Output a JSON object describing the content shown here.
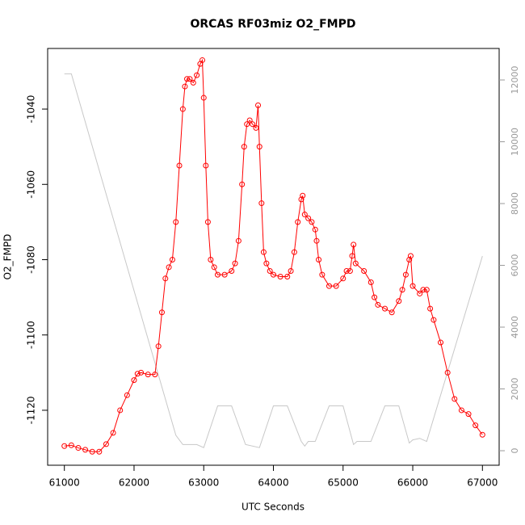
{
  "chart_data": {
    "type": "line",
    "title": "ORCAS RF03miz O2_FMPD",
    "xlabel": "UTC Seconds",
    "ylabel": "O2_FMPD",
    "xlim": [
      60760,
      67240
    ],
    "xticks": [
      61000,
      62000,
      63000,
      64000,
      65000,
      66000,
      67000
    ],
    "ylim": [
      -1134.6,
      -1023.9
    ],
    "yticks": [
      -1120,
      -1100,
      -1080,
      -1060,
      -1040
    ],
    "y2lim": [
      -470,
      13020
    ],
    "y2ticks": [
      0,
      2000,
      4000,
      6000,
      8000,
      10000,
      12000
    ],
    "series": [
      {
        "color": "#ff0000",
        "marker": "circle",
        "x": [
          61000,
          61100,
          61200,
          61300,
          61400,
          61500,
          61600,
          61700,
          61800,
          61900,
          62000,
          62050,
          62100,
          62200,
          62300,
          62350,
          62400,
          62450,
          62500,
          62550,
          62600,
          62650,
          62700,
          62730,
          62760,
          62800,
          62850,
          62900,
          62950,
          62980,
          63000,
          63030,
          63060,
          63100,
          63150,
          63200,
          63300,
          63400,
          63450,
          63500,
          63550,
          63580,
          63620,
          63660,
          63700,
          63750,
          63780,
          63800,
          63830,
          63860,
          63900,
          63950,
          64000,
          64100,
          64200,
          64250,
          64300,
          64350,
          64400,
          64420,
          64450,
          64500,
          64550,
          64600,
          64620,
          64650,
          64700,
          64800,
          64900,
          65000,
          65050,
          65100,
          65130,
          65150,
          65180,
          65300,
          65400,
          65450,
          65500,
          65600,
          65700,
          65800,
          65850,
          65900,
          65950,
          65970,
          66000,
          66100,
          66150,
          66200,
          66250,
          66300,
          66400,
          66500,
          66600,
          66700,
          66800,
          66900,
          67000
        ],
        "values": [
          -1129.5,
          -1129.3,
          -1130,
          -1130.5,
          -1131,
          -1131,
          -1129,
          -1126,
          -1120,
          -1116,
          -1112,
          -1110.3,
          -1110,
          -1110.5,
          -1110.5,
          -1103,
          -1094,
          -1085,
          -1082,
          -1080,
          -1070,
          -1055,
          -1040,
          -1034,
          -1032,
          -1032,
          -1033,
          -1031,
          -1028,
          -1027,
          -1037,
          -1055,
          -1070,
          -1080,
          -1082,
          -1084,
          -1084,
          -1083,
          -1081,
          -1075,
          -1060,
          -1050,
          -1044,
          -1043,
          -1044,
          -1045,
          -1039,
          -1050,
          -1065,
          -1078,
          -1081,
          -1083,
          -1084,
          -1084.5,
          -1084.5,
          -1083,
          -1078,
          -1070,
          -1064,
          -1063,
          -1068,
          -1069,
          -1070,
          -1072,
          -1075,
          -1080,
          -1084,
          -1087,
          -1087,
          -1085,
          -1083,
          -1083,
          -1079,
          -1076,
          -1081,
          -1083,
          -1086,
          -1090,
          -1092,
          -1093,
          -1094,
          -1091,
          -1088,
          -1084,
          -1080,
          -1079,
          -1087,
          -1089,
          -1088,
          -1088,
          -1093,
          -1096,
          -1102,
          -1110,
          -1117,
          -1120,
          -1121,
          -1124,
          -1126.5
        ]
      },
      {
        "color": "#c8c8c8",
        "axis": "y2",
        "x": [
          61000,
          61100,
          62600,
          62700,
          62900,
          63000,
          63200,
          63400,
          63600,
          63800,
          64000,
          64200,
          64400,
          64450,
          64500,
          64600,
          64800,
          65000,
          65150,
          65200,
          65400,
          65600,
          65800,
          65950,
          66000,
          66100,
          66200,
          67000
        ],
        "values": [
          12200,
          12200,
          500,
          200,
          200,
          100,
          1450,
          1450,
          200,
          100,
          1450,
          1450,
          300,
          150,
          300,
          300,
          1450,
          1450,
          200,
          300,
          300,
          1450,
          1450,
          250,
          350,
          400,
          300,
          6300
        ]
      }
    ]
  }
}
